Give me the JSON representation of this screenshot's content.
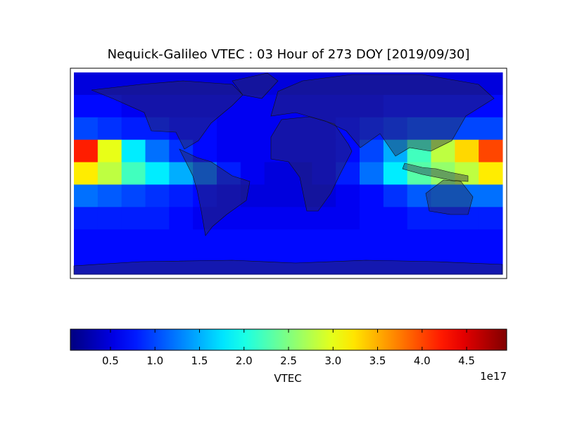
{
  "chart_data": {
    "type": "heatmap",
    "title": "Nequick-Galileo VTEC : 03 Hour of 273 DOY [2019/09/30]",
    "cmap": "jet",
    "xlim": [
      -180,
      180
    ],
    "ylim": [
      -90,
      90
    ],
    "x": [
      -170,
      -150,
      -130,
      -110,
      -90,
      -70,
      -50,
      -30,
      -10,
      10,
      30,
      50,
      70,
      90,
      110,
      130,
      150,
      170
    ],
    "y": [
      80,
      60,
      40,
      20,
      0,
      -20,
      -40,
      -60,
      -80
    ],
    "values": [
      [
        0.5,
        0.5,
        0.5,
        0.5,
        0.5,
        0.5,
        0.5,
        0.5,
        0.5,
        0.5,
        0.5,
        0.5,
        0.5,
        0.5,
        0.5,
        0.5,
        0.5,
        0.5
      ],
      [
        0.7,
        0.7,
        0.6,
        0.6,
        0.6,
        0.6,
        0.6,
        0.6,
        0.6,
        0.6,
        0.6,
        0.6,
        0.6,
        0.7,
        0.7,
        0.7,
        0.7,
        0.7
      ],
      [
        1.0,
        0.9,
        0.8,
        0.8,
        0.7,
        0.7,
        0.6,
        0.6,
        0.6,
        0.6,
        0.6,
        0.7,
        0.8,
        0.9,
        1.0,
        1.0,
        1.0,
        1.0
      ],
      [
        4.2,
        3.0,
        1.8,
        1.2,
        0.9,
        0.7,
        0.6,
        0.6,
        0.6,
        0.6,
        0.6,
        0.7,
        1.0,
        1.5,
        2.2,
        2.8,
        3.3,
        4.0
      ],
      [
        3.2,
        2.8,
        2.2,
        1.8,
        1.5,
        1.2,
        0.8,
        0.6,
        0.5,
        0.5,
        0.6,
        0.8,
        1.2,
        1.8,
        2.3,
        2.6,
        2.8,
        3.2
      ],
      [
        1.2,
        1.1,
        1.0,
        0.9,
        0.8,
        0.7,
        0.6,
        0.5,
        0.5,
        0.5,
        0.5,
        0.6,
        0.7,
        0.9,
        1.1,
        1.2,
        1.2,
        1.2
      ],
      [
        0.8,
        0.8,
        0.8,
        0.8,
        0.7,
        0.6,
        0.6,
        0.6,
        0.6,
        0.6,
        0.6,
        0.6,
        0.7,
        0.7,
        0.8,
        0.8,
        0.8,
        0.8
      ],
      [
        0.7,
        0.7,
        0.7,
        0.7,
        0.7,
        0.7,
        0.7,
        0.7,
        0.7,
        0.7,
        0.7,
        0.7,
        0.7,
        0.7,
        0.7,
        0.7,
        0.7,
        0.7
      ],
      [
        0.7,
        0.7,
        0.7,
        0.7,
        0.7,
        0.7,
        0.7,
        0.7,
        0.7,
        0.7,
        0.7,
        0.7,
        0.7,
        0.7,
        0.7,
        0.7,
        0.7,
        0.7
      ]
    ],
    "colorbar": {
      "label": "VTEC",
      "offset_label": "1e17",
      "clim": [
        0.05,
        4.95
      ],
      "ticks": [
        0.5,
        {
          "value": 1,
          "label": "1.0"
        },
        1.5,
        {
          "value": 2,
          "label": "2.0"
        },
        2.5,
        {
          "value": 3,
          "label": "3.0"
        },
        3.5,
        {
          "value": 4,
          "label": "4.0"
        },
        4.5
      ]
    }
  }
}
